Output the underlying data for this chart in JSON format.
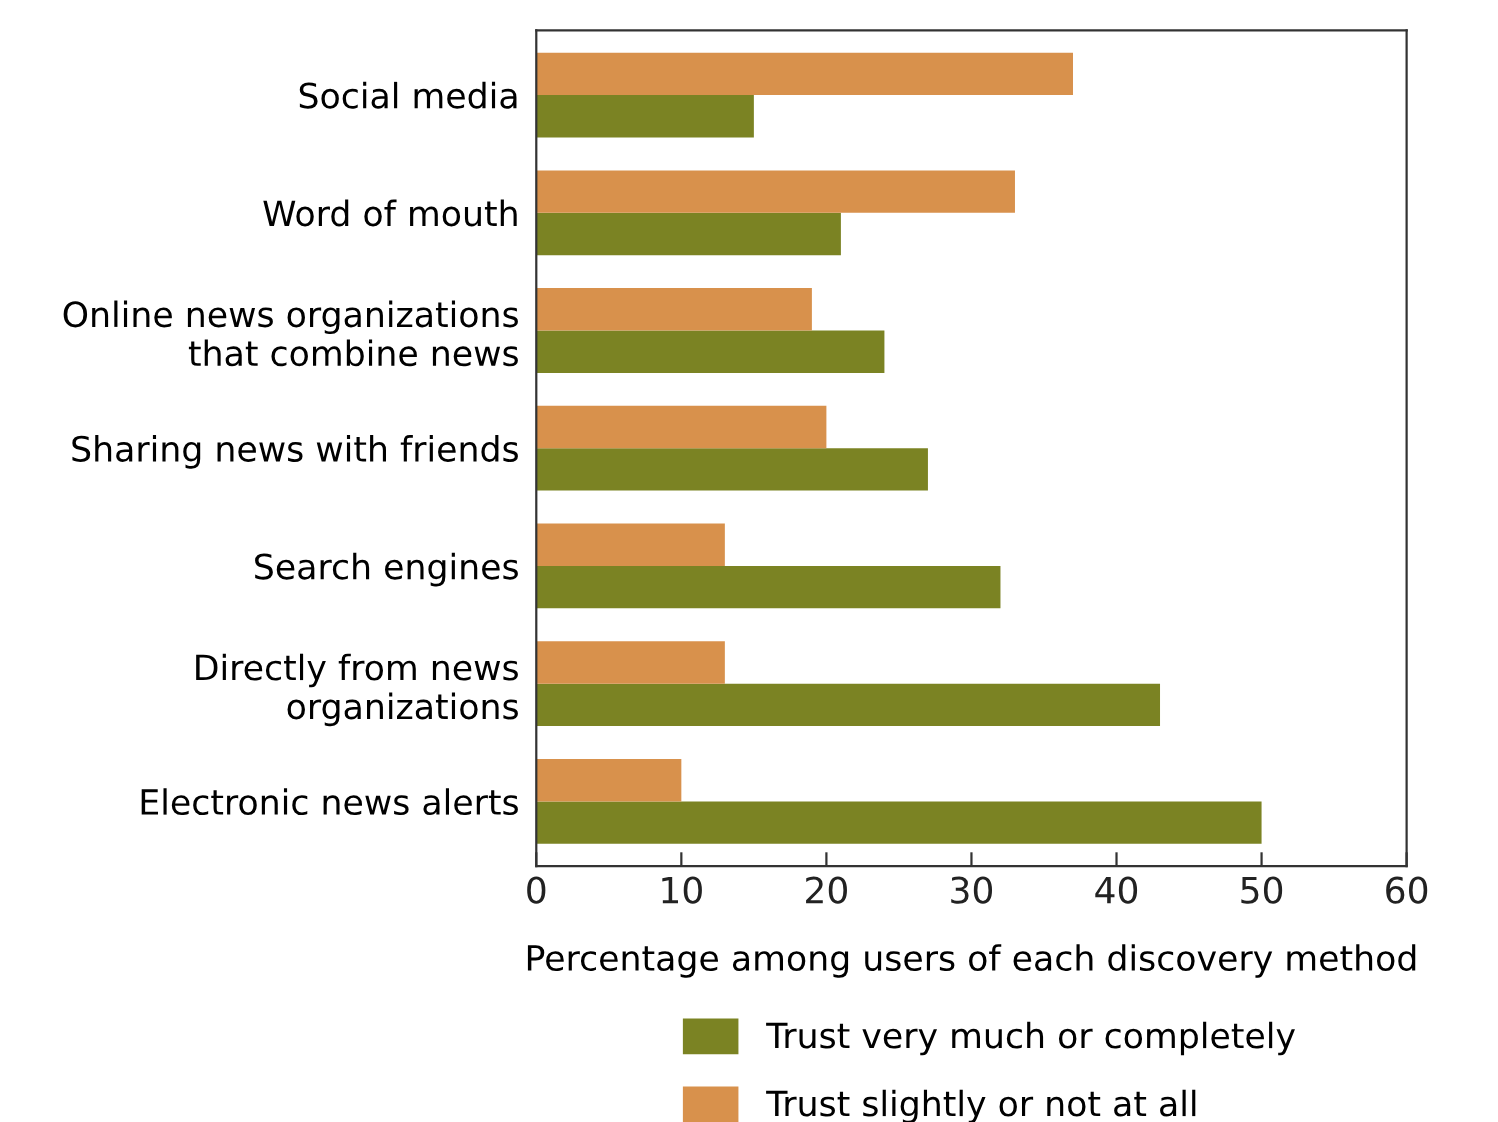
{
  "chart_data": {
    "type": "bar",
    "orientation": "horizontal",
    "categories": [
      "Social media",
      "Word of mouth",
      "Online news organizations\nthat combine news",
      "Sharing news with friends",
      "Search engines",
      "Directly from news\norganizations",
      "Electronic news alerts"
    ],
    "series": [
      {
        "name": "Trust very much or completely",
        "color": "#7b8323",
        "values": [
          15,
          21,
          24,
          27,
          32,
          43,
          50
        ]
      },
      {
        "name": "Trust slightly or not at all",
        "color": "#d8914c",
        "values": [
          37,
          33,
          19,
          20,
          13,
          13,
          10
        ]
      }
    ],
    "xlabel": "Percentage among users of each discovery method",
    "xlim": [
      0,
      60
    ],
    "xticks": [
      0,
      10,
      20,
      30,
      40,
      50,
      60
    ],
    "grid": false,
    "legend": "bottom"
  }
}
